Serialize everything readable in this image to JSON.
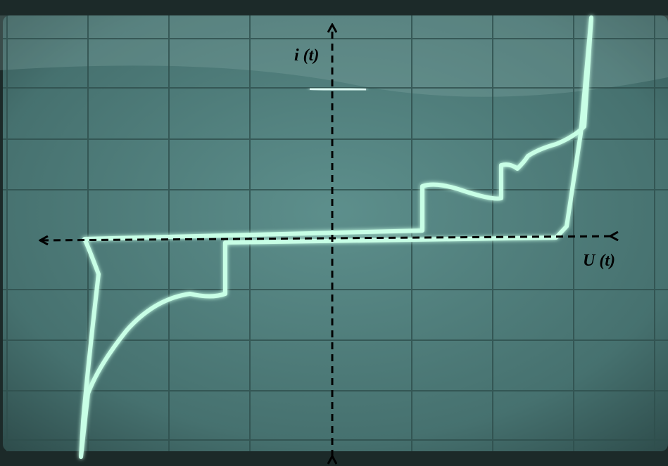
{
  "labels": {
    "y_axis": "i (t)",
    "x_axis": "U (t)"
  }
}
